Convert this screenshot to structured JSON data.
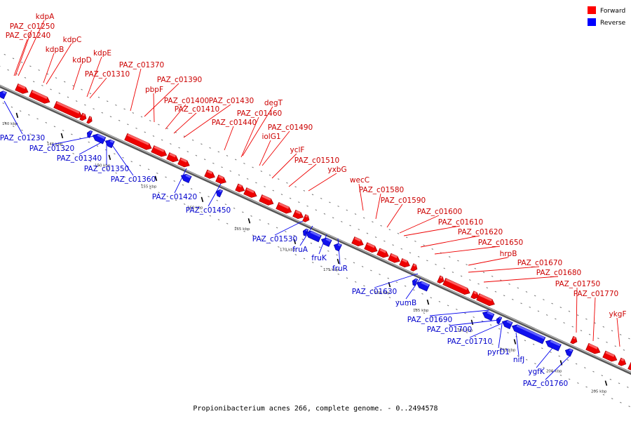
{
  "caption": "Propionibacterium acnes 266, complete genome. - 0..2494578",
  "legend": [
    {
      "label": "Forward",
      "color": "#ff0000"
    },
    {
      "label": "Reverse",
      "color": "#0000ff"
    }
  ],
  "kbp_ticks": [
    "140 kbp",
    "145 kbp",
    "150 kbp",
    "155 kbp",
    "160 kbp",
    "165 kbp",
    "170 kbp",
    "175 kbp",
    "180 kbp",
    "185 kbp",
    "190 kbp",
    "195 kbp",
    "200 kbp",
    "205 kbp"
  ],
  "forward_genes": [
    "kdpA",
    "PAZ_c01250",
    "PAZ_c01240",
    "kdpC",
    "kdpB",
    "kdpD",
    "kdpE",
    "PAZ_c01310",
    "PAZ_c01370",
    "PAZ_c01390",
    "pbpF",
    "PAZ_c01400",
    "PAZ_c01430",
    "PAZ_c01410",
    "degT",
    "PAZ_c01460",
    "PAZ_c01440",
    "PAZ_c01490",
    "iolG1",
    "yclF",
    "PAZ_c01510",
    "yxbG",
    "wecC",
    "PAZ_c01580",
    "PAZ_c01590",
    "PAZ_c01600",
    "PAZ_c01610",
    "PAZ_c01620",
    "PAZ_c01650",
    "hrpB",
    "PAZ_c01670",
    "PAZ_c01680",
    "PAZ_c01750",
    "PAZ_c01770",
    "ykgF"
  ],
  "reverse_genes": [
    "PAZ_c01230",
    "PAZ_c01320",
    "PAZ_c01340",
    "PAZ_c01350",
    "PAZ_c01360",
    "PAZ_c01420",
    "PAZ_c01450",
    "PAZ_c01530",
    "fruA",
    "fruK",
    "fruR",
    "PAZ_c01630",
    "yumB",
    "PAZ_c01690",
    "PAZ_c01700",
    "PAZ_c01710",
    "pyrD1",
    "nifJ",
    "ygfK",
    "PAZ_c01760"
  ]
}
